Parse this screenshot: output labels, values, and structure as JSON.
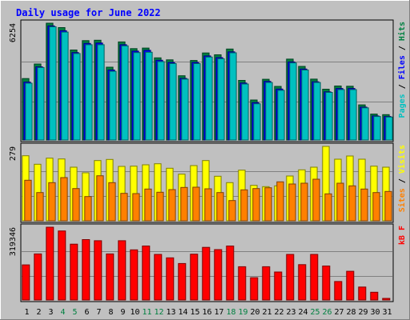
{
  "chart_data": {
    "type": "bar",
    "title": "Daily usage for June 2022",
    "categories": [
      "1",
      "2",
      "3",
      "4",
      "5",
      "6",
      "7",
      "8",
      "9",
      "10",
      "11",
      "12",
      "13",
      "14",
      "15",
      "16",
      "17",
      "18",
      "19",
      "20",
      "21",
      "22",
      "23",
      "24",
      "25",
      "26",
      "27",
      "28",
      "29",
      "30",
      "31"
    ],
    "weekend_days": [
      "4",
      "5",
      "11",
      "12",
      "18",
      "19",
      "25",
      "26"
    ],
    "panels": [
      {
        "id": "hits",
        "scale_max_label": "6254",
        "scale_max": 6254,
        "right_label": [
          {
            "text": "Pages",
            "color": "#00c0c0"
          },
          {
            "text": " / ",
            "color": "#000000"
          },
          {
            "text": "Files",
            "color": "#0000ff"
          },
          {
            "text": " / ",
            "color": "#000000"
          },
          {
            "text": "Hits",
            "color": "#008040"
          }
        ],
        "series": [
          {
            "name": "Hits",
            "color": "#008040",
            "values": [
              3290,
              4070,
              6254,
              6020,
              4820,
              5320,
              5340,
              3900,
              5250,
              4890,
              4920,
              4400,
              4290,
              3440,
              4260,
              4660,
              4560,
              4870,
              3190,
              2140,
              3250,
              2870,
              4330,
              3940,
              3260,
              2720,
              2890,
              2880,
              1880,
              1390,
              1360
            ]
          },
          {
            "name": "Files",
            "color": "#0000ff",
            "values": [
              3100,
              3920,
              6110,
              5850,
              4680,
              5170,
              5190,
              3750,
              5100,
              4760,
              4800,
              4270,
              4150,
              3300,
              4150,
              4500,
              4410,
              4720,
              3050,
              2000,
              3140,
              2730,
              4180,
              3800,
              3120,
              2580,
              2760,
              2760,
              1760,
              1290,
              1260
            ]
          },
          {
            "name": "Pages",
            "color": "#00c0c0",
            "values": [
              3040,
              3880,
              6060,
              5780,
              4630,
              5100,
              5100,
              3680,
              5040,
              4680,
              4700,
              4200,
              4090,
              3260,
              4090,
              4440,
              4350,
              4670,
              3000,
              1940,
              3080,
              2660,
              4130,
              3750,
              3080,
              2550,
              2700,
              2700,
              1720,
              1260,
              1230
            ]
          }
        ]
      },
      {
        "id": "visits",
        "scale_max_label": "279",
        "scale_max": 279,
        "right_label": [
          {
            "text": "Sites",
            "color": "#ff8000"
          },
          {
            "text": " / ",
            "color": "#000000"
          },
          {
            "text": "Visits",
            "color": "#ffff00"
          }
        ],
        "series": [
          {
            "name": "Visits",
            "color": "#ffff00",
            "values": [
              244,
              212,
              235,
              232,
              201,
              180,
              226,
              230,
              204,
              205,
              210,
              214,
              197,
              175,
              207,
              226,
              167,
              143,
              190,
              133,
              128,
              131,
              168,
              191,
              201,
              279,
              231,
              243,
              231,
              205,
              201
            ]
          },
          {
            "name": "Sites",
            "color": "#ff8000",
            "values": [
              152,
              106,
              143,
              162,
              121,
              91,
              169,
              143,
              103,
              102,
              119,
              107,
              117,
              125,
              126,
              120,
              106,
              76,
              116,
              121,
              124,
              146,
              138,
              141,
              156,
              101,
              141,
              131,
              119,
              106,
              110
            ]
          }
        ]
      },
      {
        "id": "kbytes",
        "scale_max_label": "319346",
        "scale_max": 319346,
        "right_label": [
          {
            "text": "kB F",
            "color": "#ff0000"
          }
        ],
        "series": [
          {
            "name": "kB F",
            "color": "#ff0000",
            "values": [
              154000,
              202000,
              319346,
              303000,
              245000,
              265000,
              260000,
              202000,
              260000,
              220000,
              237000,
              200000,
              185000,
              160000,
              201000,
              231000,
              221000,
              237000,
              146000,
              98000,
              146000,
              123000,
              200000,
              155000,
              200000,
              149000,
              81000,
              126000,
              57000,
              34000,
              7000
            ]
          }
        ]
      }
    ]
  }
}
